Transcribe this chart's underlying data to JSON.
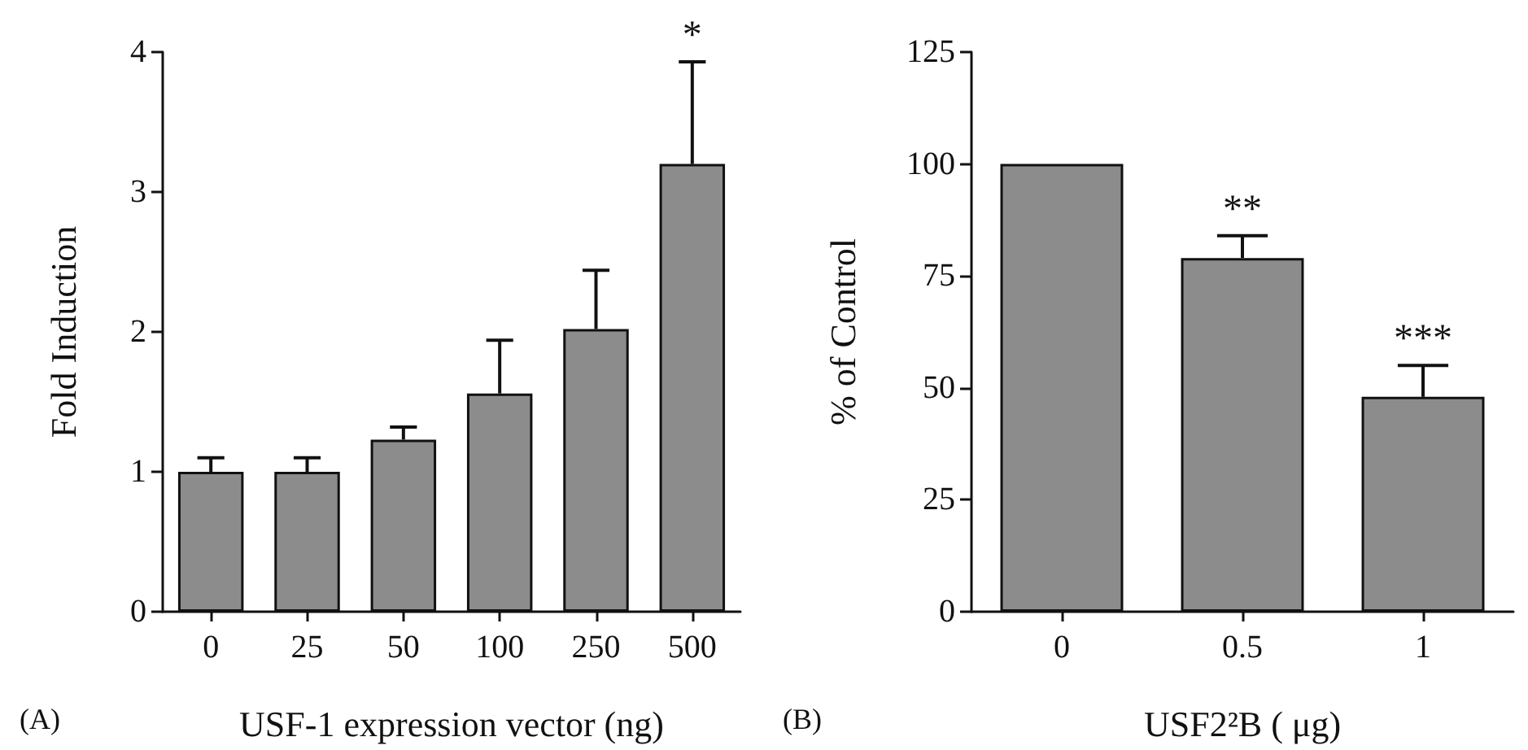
{
  "chart_data": [
    {
      "type": "bar",
      "categories": [
        "0",
        "25",
        "50",
        "100",
        "250",
        "500"
      ],
      "values": [
        1.0,
        1.0,
        1.23,
        1.56,
        2.02,
        3.2
      ],
      "color": "#8c8c8c",
      "errors": [
        [
          1.0,
          1.1
        ],
        [
          1.0,
          1.1
        ],
        [
          1.23,
          1.32
        ],
        [
          1.56,
          1.94
        ],
        [
          2.02,
          2.44
        ],
        [
          3.2,
          3.93
        ]
      ],
      "xlabel": "USF-1 expression vector (ng)",
      "ylabel": "Fold Induction",
      "ylim": [
        0,
        4
      ],
      "yticks": [
        0,
        1,
        2,
        3,
        4
      ],
      "grid": false,
      "annotations": [
        {
          "text": "*",
          "x": "500",
          "y": 3.93
        },
        "(A)"
      ]
    },
    {
      "type": "bar",
      "categories": [
        "0",
        "0.5",
        "1"
      ],
      "values": [
        100,
        79,
        48
      ],
      "color": "#8c8c8c",
      "errors": [
        null,
        [
          79,
          84
        ],
        [
          48,
          55
        ]
      ],
      "xlabel": "USF2²B ( μg)",
      "ylabel": "% of Control",
      "ylim": [
        0,
        125
      ],
      "yticks": [
        0,
        25,
        50,
        75,
        100,
        125
      ],
      "grid": false,
      "annotations": [
        {
          "text": "**",
          "x": "0.5",
          "y": 84
        },
        {
          "text": "***",
          "x": "1",
          "y": 55
        },
        "(B)"
      ]
    }
  ]
}
